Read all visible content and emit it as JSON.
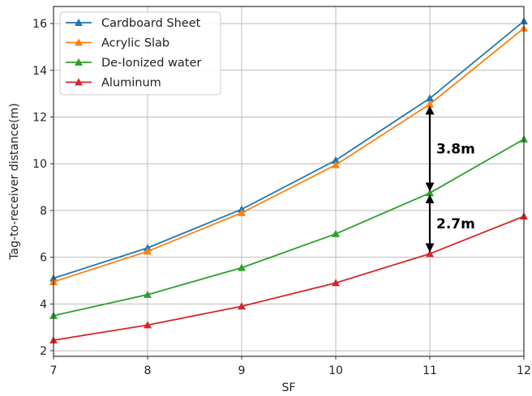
{
  "chart_data": {
    "type": "line",
    "title": "",
    "xlabel": "SF",
    "ylabel": "Tag-to-receiver distance(m)",
    "x": [
      7,
      8,
      9,
      10,
      11,
      12
    ],
    "xlim": [
      7,
      12
    ],
    "ylim": [
      1.76,
      16.73
    ],
    "xticks": [
      7,
      8,
      9,
      10,
      11,
      12
    ],
    "yticks": [
      2,
      4,
      6,
      8,
      10,
      12,
      14,
      16
    ],
    "grid": true,
    "legend_position": "top-left",
    "series": [
      {
        "name": "Cardboard Sheet",
        "color": "#1f77b4",
        "marker": "triangle",
        "values": [
          5.1,
          6.4,
          8.05,
          10.15,
          12.8,
          16.1
        ]
      },
      {
        "name": "Acrylic Slab",
        "color": "#ff7f0e",
        "marker": "triangle",
        "values": [
          4.95,
          6.25,
          7.9,
          9.95,
          12.55,
          15.8
        ]
      },
      {
        "name": "De-Ionized water",
        "color": "#2ca02c",
        "marker": "triangle",
        "values": [
          3.5,
          4.4,
          5.55,
          7.0,
          8.75,
          11.05
        ]
      },
      {
        "name": "Aluminum",
        "color": "#d62728",
        "marker": "triangle",
        "values": [
          2.45,
          3.1,
          3.9,
          4.9,
          6.15,
          7.75
        ]
      }
    ],
    "annotations": [
      {
        "text": "3.8m",
        "x": 11,
        "from": 12.55,
        "to": 8.75
      },
      {
        "text": "2.7m",
        "x": 11,
        "from": 8.75,
        "to": 6.15
      }
    ]
  }
}
